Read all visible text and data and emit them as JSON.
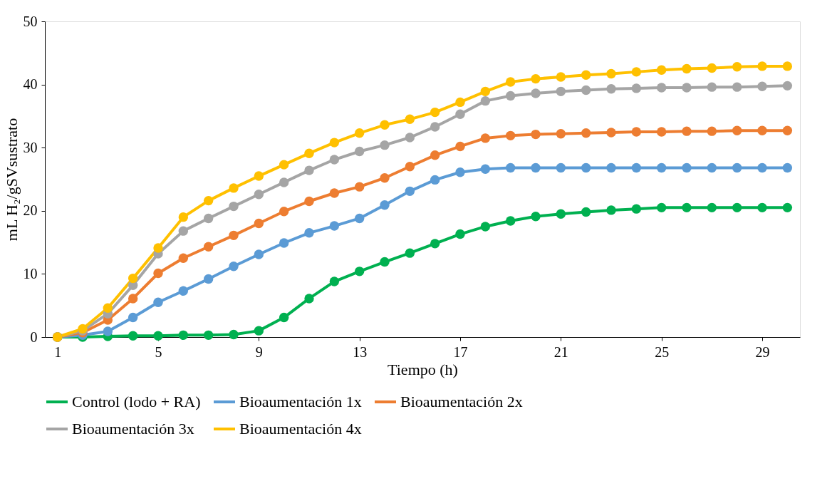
{
  "chart_data": {
    "type": "line",
    "xlabel": "Tiempo (h)",
    "ylabel": "mL H₂/gSVsustrato",
    "x": [
      1,
      2,
      3,
      4,
      5,
      6,
      7,
      8,
      9,
      10,
      11,
      12,
      13,
      14,
      15,
      16,
      17,
      18,
      19,
      20,
      21,
      22,
      23,
      24,
      25,
      26,
      27,
      28,
      29,
      30
    ],
    "xlim": [
      0.5,
      30.5
    ],
    "xticks": [
      1,
      5,
      9,
      13,
      17,
      21,
      25,
      29
    ],
    "ylim": [
      0,
      50
    ],
    "yticks": [
      0,
      10,
      20,
      30,
      40,
      50
    ],
    "grid": false,
    "legend": "bottom",
    "marker": "circle",
    "line_style": "solid",
    "series": [
      {
        "name": "Control (lodo + RA)",
        "color": "#00b050",
        "values": [
          0,
          0,
          0.1,
          0.2,
          0.2,
          0.3,
          0.3,
          0.4,
          1.0,
          3.1,
          6.1,
          8.8,
          10.4,
          11.9,
          13.3,
          14.8,
          16.3,
          17.5,
          18.4,
          19.1,
          19.5,
          19.8,
          20.1,
          20.3,
          20.5,
          20.5,
          20.5,
          20.5,
          20.5,
          20.5
        ]
      },
      {
        "name": "Bioaumentación 1x",
        "color": "#5b9bd5",
        "values": [
          0,
          0.3,
          0.9,
          3.1,
          5.5,
          7.3,
          9.2,
          11.2,
          13.1,
          14.9,
          16.5,
          17.6,
          18.8,
          20.9,
          23.1,
          24.9,
          26.1,
          26.6,
          26.8,
          26.8,
          26.8,
          26.8,
          26.8,
          26.8,
          26.8,
          26.8,
          26.8,
          26.8,
          26.8,
          26.8
        ]
      },
      {
        "name": "Bioaumentación 2x",
        "color": "#ed7d31",
        "values": [
          0,
          0.7,
          2.7,
          6.1,
          10.1,
          12.5,
          14.3,
          16.1,
          18.0,
          19.9,
          21.5,
          22.8,
          23.8,
          25.2,
          27.0,
          28.8,
          30.2,
          31.5,
          31.9,
          32.1,
          32.2,
          32.3,
          32.4,
          32.5,
          32.5,
          32.6,
          32.6,
          32.7,
          32.7,
          32.7
        ]
      },
      {
        "name": "Bioaumentación 3x",
        "color": "#a5a5a5",
        "values": [
          0,
          1.0,
          3.7,
          8.2,
          13.2,
          16.8,
          18.8,
          20.7,
          22.6,
          24.5,
          26.4,
          28.1,
          29.4,
          30.4,
          31.6,
          33.3,
          35.3,
          37.4,
          38.2,
          38.6,
          38.9,
          39.1,
          39.3,
          39.4,
          39.5,
          39.5,
          39.6,
          39.6,
          39.7,
          39.8
        ]
      },
      {
        "name": "Bioaumentación 4x",
        "color": "#ffc000",
        "values": [
          0,
          1.3,
          4.6,
          9.3,
          14.1,
          19.0,
          21.6,
          23.6,
          25.5,
          27.3,
          29.1,
          30.8,
          32.3,
          33.6,
          34.5,
          35.6,
          37.2,
          38.9,
          40.4,
          40.9,
          41.2,
          41.5,
          41.7,
          42.0,
          42.3,
          42.5,
          42.6,
          42.8,
          42.9,
          42.9
        ]
      }
    ]
  }
}
